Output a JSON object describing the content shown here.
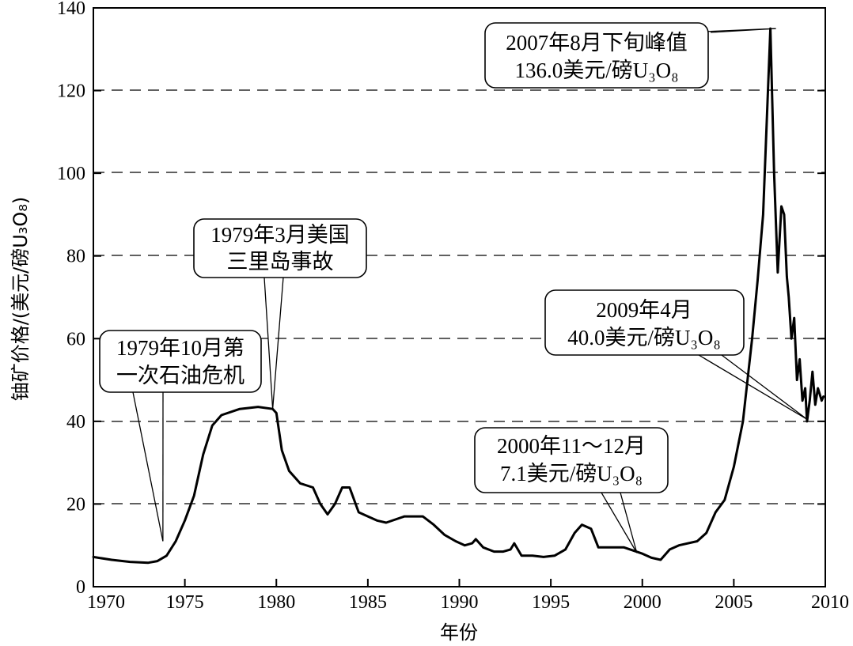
{
  "chart_data": {
    "type": "line",
    "xlabel": "年份",
    "ylabel": "铀矿价格/(美元/磅U₃O₈)",
    "xlim": [
      1970,
      2010
    ],
    "ylim": [
      0,
      140
    ],
    "xticks": [
      1970,
      1975,
      1980,
      1985,
      1990,
      1995,
      2000,
      2005,
      2010
    ],
    "yticks": [
      0,
      20,
      40,
      60,
      80,
      100,
      120,
      140
    ],
    "grid": "horizontal dashed",
    "series": [
      {
        "x": [
          1970,
          1971,
          1972,
          1973,
          1973.5,
          1974,
          1974.5,
          1975,
          1975.5,
          1976,
          1976.5,
          1977,
          1978,
          1979,
          1979.8,
          1980,
          1980.3,
          1980.7,
          1981.3,
          1982,
          1982.4,
          1982.8,
          1983.2,
          1983.6,
          1984,
          1984.5,
          1985,
          1985.5,
          1986,
          1987,
          1988,
          1988.6,
          1989.2,
          1989.8,
          1990.3,
          1990.7,
          1990.9,
          1991.3,
          1991.9,
          1992.4,
          1992.8,
          1993,
          1993.4,
          1994,
          1994.6,
          1995.2,
          1995.8,
          1996.3,
          1996.7,
          1997.2,
          1997.6,
          1998.2,
          1999,
          2000,
          2000.5,
          2001,
          2001.5,
          2002,
          2003,
          2003.5,
          2004,
          2004.5,
          2005,
          2005.5,
          2006,
          2006.3,
          2006.6,
          2007,
          2007.2,
          2007.4,
          2007.6,
          2007.75,
          2007.9,
          2008,
          2008.15,
          2008.3,
          2008.45,
          2008.6,
          2008.75,
          2008.9,
          2009,
          2009.15,
          2009.3,
          2009.45,
          2009.6,
          2009.8,
          2009.9
        ],
        "y": [
          7.2,
          6.5,
          6,
          5.8,
          6.2,
          7.5,
          11,
          16,
          22,
          32,
          39,
          41.5,
          43,
          43.5,
          43,
          42,
          33,
          28,
          25,
          24,
          20,
          17.5,
          20,
          24,
          24,
          18,
          17,
          16,
          15.5,
          17,
          17,
          15,
          12.5,
          11,
          10,
          10.5,
          11.5,
          9.5,
          8.5,
          8.5,
          9,
          10.5,
          7.5,
          7.5,
          7.2,
          7.5,
          9,
          13,
          15,
          14,
          9.5,
          9.5,
          9.5,
          8,
          7,
          6.5,
          9,
          10,
          11,
          13,
          18,
          21,
          29,
          40,
          60,
          74,
          90,
          135,
          100,
          76,
          92,
          90,
          75,
          70,
          60,
          65,
          50,
          55,
          45,
          48,
          40,
          45,
          52,
          44,
          48,
          45,
          46
        ]
      }
    ],
    "annotations": [
      {
        "lines": [
          "2007年8月下旬峰值",
          "136.0美元/磅U₃O₈"
        ],
        "point": [
          2007.3,
          135
        ]
      },
      {
        "lines": [
          "1979年3月美国",
          "三里岛事故"
        ],
        "point": [
          1979.8,
          43
        ]
      },
      {
        "lines": [
          "1979年10月第",
          "一次石油危机"
        ],
        "point": [
          1973.8,
          11
        ]
      },
      {
        "lines": [
          "2009年4月",
          "40.0美元/磅U₃O₈"
        ],
        "point": [
          2009.0,
          40.5
        ]
      },
      {
        "lines": [
          "2000年11～12月",
          "7.1美元/磅U₃O₈"
        ],
        "point": [
          1999.7,
          8.2
        ]
      }
    ]
  }
}
